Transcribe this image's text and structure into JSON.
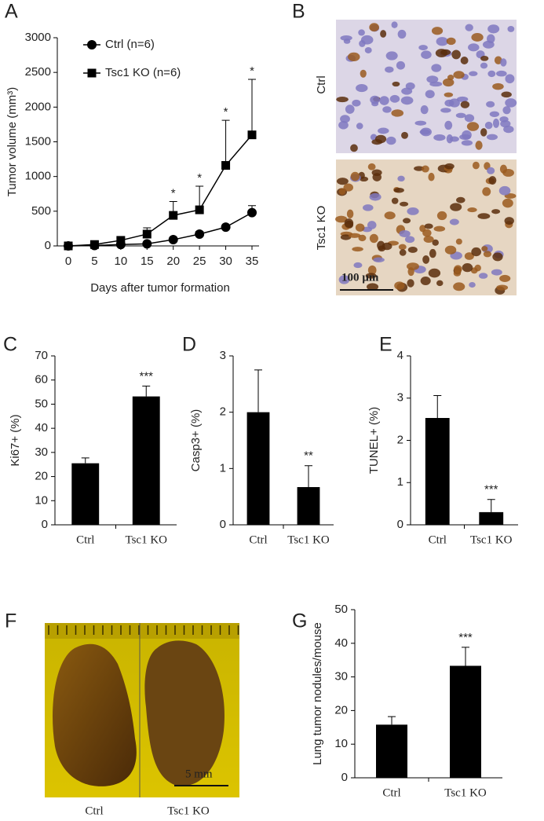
{
  "chart_data": [
    {
      "panel": "A",
      "type": "line",
      "x": [
        0,
        5,
        10,
        15,
        20,
        25,
        30,
        35
      ],
      "xlim": [
        0,
        35
      ],
      "xticks": [
        0,
        5,
        10,
        15,
        20,
        25,
        30,
        35
      ],
      "ylim": [
        0,
        3000
      ],
      "yticks": [
        0,
        500,
        1000,
        1500,
        2000,
        2500,
        3000
      ],
      "x_label": "Days after tumor formation",
      "y_label": "Tumor volume (mm³)",
      "series": [
        {
          "name": "Ctrl (n=6)",
          "marker": "circle",
          "color": "#000000",
          "values": [
            0,
            5,
            20,
            30,
            90,
            170,
            270,
            480
          ],
          "errors": [
            0,
            5,
            10,
            20,
            20,
            40,
            30,
            100
          ]
        },
        {
          "name": "Tsc1 KO (n=6)",
          "marker": "square",
          "color": "#000000",
          "values": [
            0,
            20,
            80,
            170,
            440,
            520,
            1160,
            1600
          ],
          "errors": [
            0,
            10,
            30,
            90,
            200,
            340,
            650,
            800
          ],
          "annotations": [
            null,
            null,
            null,
            null,
            "*",
            "*",
            "*",
            "*"
          ]
        }
      ]
    },
    {
      "panel": "C",
      "type": "bar",
      "categories": [
        "Ctrl",
        "Tsc1 KO"
      ],
      "values": [
        25.5,
        53.2
      ],
      "errors": [
        2.2,
        4.3
      ],
      "annotations": [
        null,
        "***"
      ],
      "y_label": "Ki67+ (%)",
      "ylim": [
        0,
        70
      ],
      "yticks": [
        0,
        10,
        20,
        30,
        40,
        50,
        60,
        70
      ],
      "color": "#000000"
    },
    {
      "panel": "D",
      "type": "bar",
      "categories": [
        "Ctrl",
        "Tsc1 KO"
      ],
      "values": [
        2.0,
        0.67
      ],
      "errors": [
        0.75,
        0.38
      ],
      "annotations": [
        null,
        "**"
      ],
      "y_label": "Casp3+ (%)",
      "ylim": [
        0,
        3
      ],
      "yticks": [
        0,
        1,
        2,
        3
      ],
      "color": "#000000"
    },
    {
      "panel": "E",
      "type": "bar",
      "categories": [
        "Ctrl",
        "Tsc1 KO"
      ],
      "values": [
        2.53,
        0.3
      ],
      "errors": [
        0.53,
        0.3
      ],
      "annotations": [
        null,
        "***"
      ],
      "y_label": "TUNEL+ (%)",
      "ylim": [
        0,
        4
      ],
      "yticks": [
        0,
        1,
        2,
        3,
        4
      ],
      "color": "#000000"
    },
    {
      "panel": "G",
      "type": "bar",
      "categories": [
        "Ctrl",
        "Tsc1 KO"
      ],
      "values": [
        15.8,
        33.3
      ],
      "errors": [
        2.4,
        5.5
      ],
      "annotations": [
        null,
        "***"
      ],
      "y_label": "Lung tumor nodules/mouse",
      "ylim": [
        0,
        50
      ],
      "yticks": [
        0,
        10,
        20,
        30,
        40,
        50
      ],
      "color": "#000000"
    }
  ],
  "images": [
    {
      "panel": "B",
      "labels": [
        "Ctrl",
        "Tsc1 KO"
      ],
      "scale_bar": "100 µm"
    },
    {
      "panel": "F",
      "labels": [
        "Ctrl",
        "Tsc1 KO"
      ],
      "scale_bar": "5 mm"
    }
  ]
}
